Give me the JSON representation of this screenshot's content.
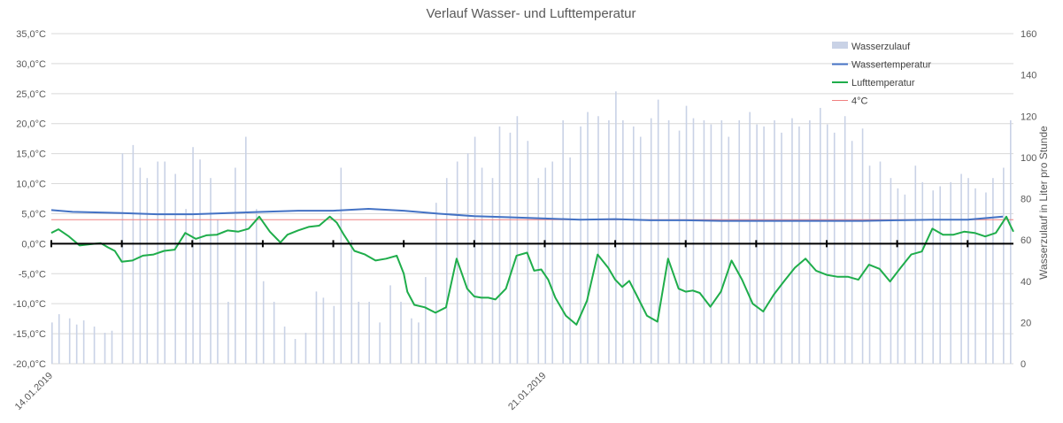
{
  "chart_data": {
    "type": "line",
    "title": "Verlauf Wasser- und Lufttemperatur",
    "y_left": {
      "min": -20,
      "max": 35,
      "step": 5,
      "tick_labels": [
        "35,0°C",
        "30,0°C",
        "25,0°C",
        "20,0°C",
        "15,0°C",
        "10,0°C",
        "5,0°C",
        "0,0°C",
        "-5,0°C",
        "-10,0°C",
        "-15,0°C",
        "-20,0°C"
      ]
    },
    "y_right": {
      "min": 0,
      "max": 160,
      "step": 20,
      "label": "Wasserzulauf in Liter pro Stunde",
      "tick_labels": [
        "160",
        "140",
        "120",
        "100",
        "80",
        "60",
        "40",
        "20",
        "0"
      ]
    },
    "x": {
      "start": "14.01.2019",
      "end": "27.01.2019",
      "tick_labels": [
        "14.01.2019",
        "21.01.2019"
      ],
      "tick_label_days": [
        0,
        7
      ],
      "tick_days": [
        0,
        1,
        2,
        3,
        4,
        5,
        6,
        7,
        8,
        9,
        10,
        11,
        12,
        13,
        14
      ]
    },
    "grid": true,
    "legend_position": "top-right",
    "legend": [
      {
        "name": "Wasserzulauf",
        "kind": "bar",
        "color": "#c9d2e6"
      },
      {
        "name": "Wassertemperatur",
        "kind": "line",
        "color": "#4472c4"
      },
      {
        "name": "Lufttemperatur",
        "kind": "line",
        "color": "#1fad4b"
      },
      {
        "name": "4°C",
        "kind": "line",
        "color": "#f08080"
      }
    ],
    "series": [
      {
        "name": "Wassertemperatur",
        "axis": "left",
        "color": "#4472c4",
        "x_days": [
          0,
          0.3,
          1,
          1.5,
          2,
          2.5,
          3,
          3.5,
          4,
          4.5,
          5,
          5.5,
          6,
          6.5,
          7,
          7.5,
          8,
          8.5,
          9,
          9.5,
          10,
          10.5,
          11,
          11.5,
          12,
          12.5,
          13,
          13.5
        ],
        "y": [
          5.6,
          5.3,
          5.1,
          4.9,
          4.9,
          5.1,
          5.3,
          5.5,
          5.5,
          5.8,
          5.5,
          5.0,
          4.6,
          4.4,
          4.2,
          4.0,
          4.1,
          3.9,
          3.9,
          3.8,
          3.8,
          3.8,
          3.8,
          3.8,
          3.9,
          4.0,
          4.0,
          4.5
        ]
      },
      {
        "name": "Lufttemperatur",
        "axis": "left",
        "color": "#1fad4b",
        "x_days": [
          0,
          0.1,
          0.25,
          0.4,
          0.55,
          0.7,
          0.8,
          0.9,
          1.0,
          1.15,
          1.3,
          1.45,
          1.6,
          1.75,
          1.9,
          2.05,
          2.2,
          2.35,
          2.5,
          2.65,
          2.8,
          2.95,
          3.1,
          3.25,
          3.35,
          3.5,
          3.65,
          3.8,
          3.95,
          4.05,
          4.15,
          4.3,
          4.45,
          4.6,
          4.75,
          4.9,
          5.0,
          5.05,
          5.15,
          5.3,
          5.45,
          5.6,
          5.75,
          5.9,
          6.0,
          6.1,
          6.2,
          6.3,
          6.45,
          6.6,
          6.75,
          6.85,
          6.95,
          7.05,
          7.15,
          7.3,
          7.45,
          7.6,
          7.75,
          7.9,
          8.0,
          8.1,
          8.2,
          8.3,
          8.45,
          8.6,
          8.75,
          8.9,
          9.0,
          9.1,
          9.2,
          9.35,
          9.5,
          9.65,
          9.8,
          9.95,
          10.1,
          10.25,
          10.4,
          10.55,
          10.7,
          10.85,
          11.0,
          11.15,
          11.3,
          11.45,
          11.6,
          11.75,
          11.9,
          12.05,
          12.2,
          12.35,
          12.5,
          12.65,
          12.8,
          12.95,
          13.1,
          13.25,
          13.4,
          13.5,
          13.55,
          13.6,
          13.65
        ],
        "y": [
          1.8,
          2.4,
          1.2,
          -0.3,
          -0.1,
          0.1,
          -0.6,
          -1.2,
          -3.0,
          -2.8,
          -2.0,
          -1.8,
          -1.2,
          -1.0,
          1.8,
          0.8,
          1.4,
          1.5,
          2.2,
          2.0,
          2.5,
          4.5,
          2.0,
          0.2,
          1.5,
          2.2,
          2.8,
          3.0,
          4.5,
          3.5,
          1.5,
          -1.2,
          -1.8,
          -2.8,
          -2.5,
          -2.0,
          -5.0,
          -8.0,
          -10.2,
          -10.6,
          -11.5,
          -10.6,
          -2.5,
          -7.5,
          -8.8,
          -9.0,
          -9.0,
          -9.3,
          -7.5,
          -2.0,
          -1.5,
          -4.5,
          -4.3,
          -6.0,
          -9.0,
          -12.0,
          -13.5,
          -9.5,
          -1.8,
          -4.0,
          -6.0,
          -7.2,
          -6.2,
          -8.5,
          -12.0,
          -13.0,
          -2.5,
          -7.5,
          -8.0,
          -7.8,
          -8.2,
          -10.5,
          -8.0,
          -2.8,
          -6.0,
          -10.0,
          -11.3,
          -8.5,
          -6.2,
          -4.0,
          -2.5,
          -4.5,
          -5.2,
          -5.5,
          -5.5,
          -6.0,
          -3.5,
          -4.2,
          -6.3,
          -4.0,
          -1.8,
          -1.3,
          2.5,
          1.5,
          1.5,
          2.0,
          1.8,
          1.2,
          1.8,
          3.6,
          4.5,
          3.2,
          2.0
        ]
      },
      {
        "name": "4°C",
        "axis": "left",
        "color": "#f08080",
        "x_days": [
          0,
          13.65
        ],
        "y": [
          4,
          4
        ]
      },
      {
        "name": "Wasserzulauf",
        "axis": "right",
        "color": "#c9d2e6",
        "note": "rate bars, values in Liter pro Stunde",
        "x_days": [
          0,
          0.1,
          0.25,
          0.35,
          0.45,
          0.6,
          0.75,
          0.85,
          1.0,
          1.15,
          1.25,
          1.35,
          1.5,
          1.6,
          1.75,
          1.9,
          2.0,
          2.1,
          2.25,
          2.35,
          2.5,
          2.6,
          2.75,
          2.9,
          3.0,
          3.15,
          3.3,
          3.45,
          3.6,
          3.75,
          3.85,
          4.0,
          4.1,
          4.25,
          4.35,
          4.5,
          4.65,
          4.8,
          4.95,
          5.1,
          5.2,
          5.3,
          5.45,
          5.6,
          5.75,
          5.9,
          6.0,
          6.1,
          6.25,
          6.35,
          6.5,
          6.6,
          6.75,
          6.9,
          7.0,
          7.1,
          7.25,
          7.35,
          7.5,
          7.6,
          7.75,
          7.9,
          8.0,
          8.1,
          8.25,
          8.35,
          8.5,
          8.6,
          8.75,
          8.9,
          9.0,
          9.1,
          9.25,
          9.35,
          9.5,
          9.6,
          9.75,
          9.9,
          10.0,
          10.1,
          10.25,
          10.35,
          10.5,
          10.6,
          10.75,
          10.9,
          11.0,
          11.1,
          11.25,
          11.35,
          11.5,
          11.6,
          11.75,
          11.9,
          12.0,
          12.1,
          12.25,
          12.35,
          12.5,
          12.6,
          12.75,
          12.9,
          13.0,
          13.1,
          13.25,
          13.35,
          13.5,
          13.6
        ],
        "y": [
          20,
          24,
          22,
          19,
          21,
          18,
          15,
          16,
          102,
          106,
          95,
          90,
          98,
          98,
          92,
          75,
          105,
          99,
          90,
          70,
          30,
          95,
          110,
          75,
          40,
          30,
          18,
          12,
          15,
          35,
          32,
          28,
          95,
          60,
          30,
          30,
          20,
          38,
          30,
          22,
          20,
          42,
          78,
          90,
          98,
          102,
          110,
          95,
          90,
          115,
          112,
          120,
          108,
          90,
          95,
          98,
          118,
          100,
          115,
          122,
          120,
          118,
          132,
          118,
          115,
          110,
          119,
          128,
          118,
          113,
          125,
          119,
          118,
          116,
          118,
          110,
          118,
          122,
          116,
          115,
          118,
          112,
          119,
          115,
          118,
          124,
          116,
          112,
          120,
          108,
          114,
          96,
          98,
          90,
          85,
          82,
          96,
          88,
          84,
          86,
          88,
          92,
          90,
          85,
          83,
          90,
          95,
          118
        ]
      }
    ]
  }
}
